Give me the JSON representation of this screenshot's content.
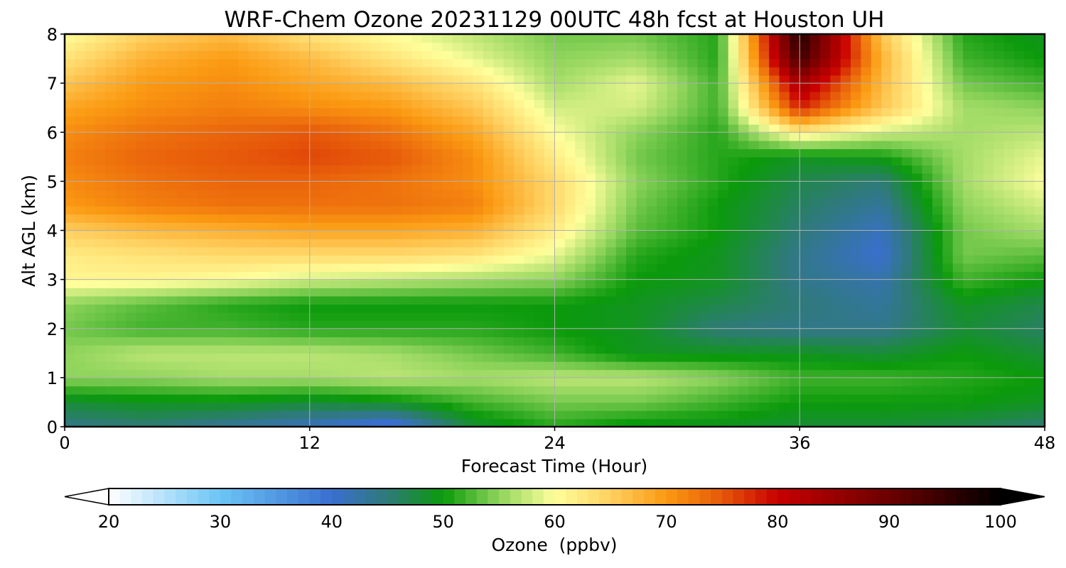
{
  "chart_data": {
    "type": "heatmap",
    "subtype": "filled-contour time-height cross-section",
    "title": "WRF-Chem Ozone  20231129 00UTC 48h fcst at Houston UH",
    "xlabel": "Forecast Time (Hour)",
    "ylabel": "Alt AGL (km)",
    "xlim": [
      0,
      48
    ],
    "ylim": [
      0,
      8
    ],
    "xticks": [
      0,
      12,
      24,
      36,
      48
    ],
    "yticks": [
      0,
      1,
      2,
      3,
      4,
      5,
      6,
      7,
      8
    ],
    "grid": true,
    "colorbar": {
      "label": "Ozone  (ppbv)",
      "min": 20,
      "max": 100,
      "ticks": [
        20,
        30,
        40,
        50,
        60,
        70,
        80,
        90,
        100
      ],
      "extend": "both",
      "orientation": "horizontal",
      "colors": {
        "20": "#ffffff",
        "30": "#6bc4f5",
        "40": "#3a6fd0",
        "45": "#2f7a78",
        "50": "#0b9a0b",
        "55": "#8fd45c",
        "60": "#ffff9c",
        "65": "#ffd060",
        "70": "#fb9a12",
        "75": "#e6580a",
        "80": "#c80000",
        "90": "#6b0000",
        "100": "#000000"
      }
    },
    "x_hours": [
      0,
      4,
      8,
      12,
      16,
      20,
      24,
      28,
      32,
      36,
      40,
      44,
      48
    ],
    "y_km": [
      0,
      0.5,
      1,
      1.5,
      2,
      2.5,
      3,
      3.5,
      4,
      4.5,
      5,
      5.5,
      6,
      6.5,
      7,
      7.5,
      8
    ],
    "ozone_ppbv": [
      [
        44,
        45,
        43,
        41,
        38,
        48,
        51,
        49,
        49,
        48,
        48,
        47,
        45
      ],
      [
        48,
        49,
        49,
        48,
        49,
        52,
        54,
        54,
        52,
        50,
        50,
        50,
        49
      ],
      [
        55,
        55,
        56,
        56,
        57,
        56,
        57,
        57,
        55,
        52,
        52,
        51,
        50
      ],
      [
        55,
        57,
        57,
        57,
        56,
        54,
        52,
        49,
        49,
        49,
        48,
        50,
        48
      ],
      [
        54,
        52,
        52,
        51,
        51,
        51,
        50,
        49,
        45,
        44,
        44,
        48,
        46
      ],
      [
        55,
        53,
        51,
        50,
        50,
        50,
        50,
        49,
        47,
        45,
        43,
        49,
        47
      ],
      [
        61,
        61,
        60,
        58,
        57,
        56,
        55,
        50,
        49,
        44,
        42,
        52,
        50
      ],
      [
        62,
        63,
        64,
        64,
        64,
        63,
        59,
        51,
        49,
        44,
        40,
        54,
        53
      ],
      [
        65,
        67,
        68,
        69,
        69,
        68,
        62,
        53,
        50,
        45,
        41,
        54,
        56
      ],
      [
        70,
        72,
        73,
        73,
        73,
        72,
        64,
        54,
        50,
        46,
        43,
        55,
        58
      ],
      [
        71,
        73,
        74,
        74,
        73,
        71,
        64,
        55,
        51,
        47,
        45,
        56,
        60
      ],
      [
        72,
        74,
        75,
        76,
        75,
        71,
        62,
        54,
        51,
        49,
        50,
        56,
        59
      ],
      [
        71,
        73,
        74,
        75,
        73,
        69,
        60,
        55,
        51,
        62,
        58,
        56,
        57
      ],
      [
        69,
        71,
        72,
        71,
        70,
        66,
        58,
        58,
        52,
        78,
        66,
        56,
        55
      ],
      [
        66,
        70,
        71,
        69,
        67,
        63,
        56,
        59,
        52,
        84,
        67,
        54,
        52
      ],
      [
        63,
        68,
        70,
        67,
        63,
        59,
        55,
        56,
        51,
        94,
        68,
        52,
        50
      ],
      [
        60,
        65,
        67,
        63,
        60,
        57,
        54,
        54,
        51,
        97,
        66,
        51,
        49
      ]
    ]
  }
}
